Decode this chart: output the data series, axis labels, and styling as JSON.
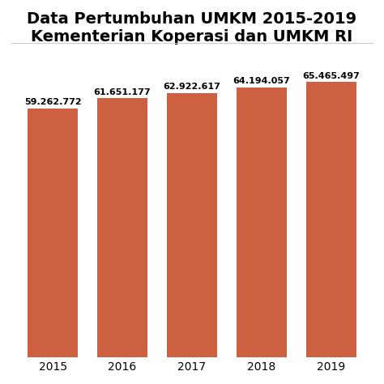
{
  "title_line1": "Data Pertumbuhan UMKM 2015-2019",
  "title_line2": "Kementerian Koperasi dan UMKM RI",
  "years": [
    "2015",
    "2016",
    "2017",
    "2018",
    "2019"
  ],
  "values": [
    59262772,
    61651177,
    62922617,
    64194057,
    65465497
  ],
  "labels": [
    "59.262.772",
    "61.651.177",
    "62.922.617",
    "64.194.057",
    "65.465.497"
  ],
  "bar_color": "#CC6040",
  "background_color": "#ffffff",
  "ylim_min": 0,
  "ylim_max": 72000000,
  "title_fontsize": 14,
  "label_fontsize": 8,
  "ylabel_fontsize": 9,
  "xtick_fontsize": 10,
  "title_fontweight": "bold",
  "separator_color": "#cccccc",
  "grid_color": "#e8e8e8"
}
